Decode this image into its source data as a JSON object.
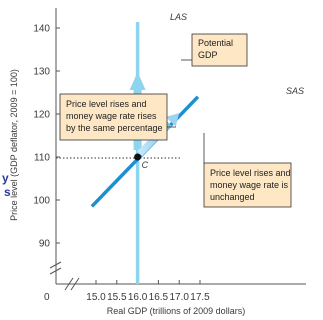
{
  "chart_data": {
    "type": "line",
    "xlabel": "Real GDP (trillions of 2009 dollars)",
    "ylabel": "Price level (GDP deflator, 2009 = 100)",
    "xlim": [
      14.5,
      17.5
    ],
    "ylim": [
      80,
      145
    ],
    "x_ticks": [
      "15.0",
      "15.5",
      "16.0",
      "16.5",
      "17.0",
      "17.5"
    ],
    "y_ticks": [
      "90",
      "100",
      "110",
      "120",
      "130",
      "140"
    ],
    "x_origin_label": "0",
    "series": [
      {
        "name": "LAS",
        "x": [
          16.0,
          16.0
        ],
        "y": [
          80,
          145
        ]
      },
      {
        "name": "SAS",
        "x": [
          14.9,
          17.45
        ],
        "y": [
          98.5,
          124
        ]
      }
    ],
    "points": [
      {
        "label": "C",
        "x": 16.0,
        "y": 110
      }
    ],
    "annotations": [
      {
        "id": "potential",
        "lines": [
          "Potential",
          "GDP"
        ]
      },
      {
        "id": "rises",
        "lines": [
          "Price level rises and",
          "money wage rate rises",
          "by the same percentage"
        ]
      },
      {
        "id": "unchanged",
        "lines": [
          "Price level rises and",
          "money wage rate is",
          "unchanged"
        ]
      }
    ],
    "edge_text": [
      "y",
      "s"
    ],
    "colors": {
      "las": "#8dd4ee",
      "sas": "#1e8fd0",
      "arrow_up": "#8dd4ee",
      "arrow_sas": "#9ed3f0",
      "box_fill": "#fde7c4",
      "box_stroke": "#333333"
    }
  }
}
